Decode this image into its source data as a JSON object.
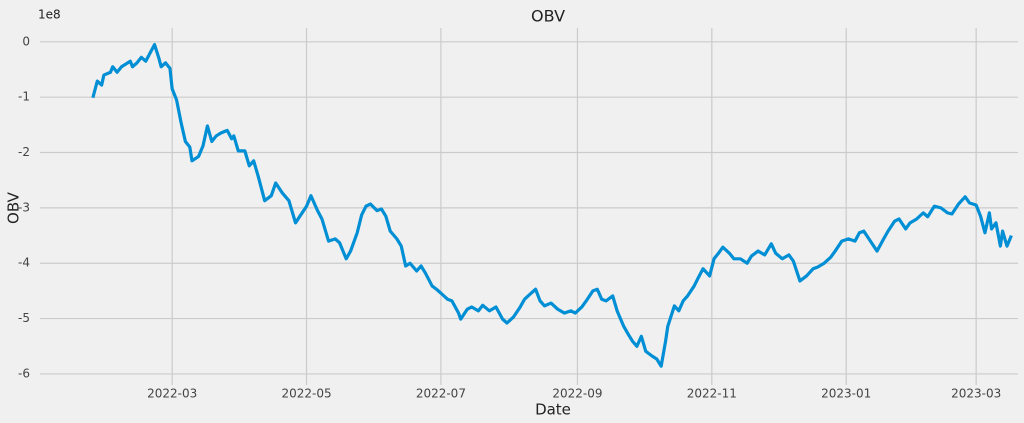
{
  "chart_data": {
    "type": "line",
    "title": "OBV",
    "x_label": "Date",
    "y_label": "OBV",
    "y_offset_label": "1e8",
    "color": "#008fd5",
    "grid": true,
    "xlim": [
      "2021-12-31",
      "2023-03-20"
    ],
    "xticks": [
      {
        "value": "2022-03-01",
        "label": "2022-03"
      },
      {
        "value": "2022-05-01",
        "label": "2022-05"
      },
      {
        "value": "2022-07-01",
        "label": "2022-07"
      },
      {
        "value": "2022-09-01",
        "label": "2022-09"
      },
      {
        "value": "2022-11-01",
        "label": "2022-11"
      },
      {
        "value": "2023-01-01",
        "label": "2023-01"
      },
      {
        "value": "2023-03-01",
        "label": "2023-03"
      }
    ],
    "ylim": [
      -6.2,
      0.25
    ],
    "yticks": [
      -6,
      -5,
      -4,
      -3,
      -2,
      -1,
      0
    ],
    "x": [
      "2022-01-24",
      "2022-01-26",
      "2022-01-28",
      "2022-01-29",
      "2022-02-01",
      "2022-02-02",
      "2022-02-04",
      "2022-02-06",
      "2022-02-08",
      "2022-02-10",
      "2022-02-11",
      "2022-02-13",
      "2022-02-15",
      "2022-02-17",
      "2022-02-19",
      "2022-02-21",
      "2022-02-23",
      "2022-02-24",
      "2022-02-26",
      "2022-02-28",
      "2022-03-01",
      "2022-03-03",
      "2022-03-05",
      "2022-03-07",
      "2022-03-09",
      "2022-03-10",
      "2022-03-13",
      "2022-03-15",
      "2022-03-17",
      "2022-03-19",
      "2022-03-21",
      "2022-03-23",
      "2022-03-26",
      "2022-03-28",
      "2022-03-29",
      "2022-03-31",
      "2022-04-03",
      "2022-04-05",
      "2022-04-07",
      "2022-04-09",
      "2022-04-12",
      "2022-04-15",
      "2022-04-17",
      "2022-04-20",
      "2022-04-23",
      "2022-04-26",
      "2022-04-28",
      "2022-05-01",
      "2022-05-03",
      "2022-05-06",
      "2022-05-08",
      "2022-05-11",
      "2022-05-14",
      "2022-05-16",
      "2022-05-19",
      "2022-05-21",
      "2022-05-24",
      "2022-05-26",
      "2022-05-28",
      "2022-05-30",
      "2022-06-02",
      "2022-06-04",
      "2022-06-06",
      "2022-06-08",
      "2022-06-11",
      "2022-06-13",
      "2022-06-15",
      "2022-06-17",
      "2022-06-20",
      "2022-06-22",
      "2022-06-24",
      "2022-06-27",
      "2022-06-29",
      "2022-07-01",
      "2022-07-04",
      "2022-07-06",
      "2022-07-09",
      "2022-07-10",
      "2022-07-13",
      "2022-07-15",
      "2022-07-18",
      "2022-07-20",
      "2022-07-23",
      "2022-07-26",
      "2022-07-29",
      "2022-07-31",
      "2022-08-03",
      "2022-08-06",
      "2022-08-08",
      "2022-08-11",
      "2022-08-13",
      "2022-08-15",
      "2022-08-17",
      "2022-08-20",
      "2022-08-23",
      "2022-08-26",
      "2022-08-29",
      "2022-08-31",
      "2022-09-03",
      "2022-09-05",
      "2022-09-08",
      "2022-09-10",
      "2022-09-12",
      "2022-09-14",
      "2022-09-17",
      "2022-09-19",
      "2022-09-22",
      "2022-09-24",
      "2022-09-26",
      "2022-09-28",
      "2022-09-30",
      "2022-10-02",
      "2022-10-05",
      "2022-10-07",
      "2022-10-09",
      "2022-10-11",
      "2022-10-12",
      "2022-10-15",
      "2022-10-17",
      "2022-10-19",
      "2022-10-21",
      "2022-10-24",
      "2022-10-26",
      "2022-10-28",
      "2022-10-31",
      "2022-11-02",
      "2022-11-04",
      "2022-11-06",
      "2022-11-09",
      "2022-11-11",
      "2022-11-14",
      "2022-11-17",
      "2022-11-19",
      "2022-11-22",
      "2022-11-25",
      "2022-11-28",
      "2022-11-30",
      "2022-12-03",
      "2022-12-06",
      "2022-12-08",
      "2022-12-11",
      "2022-12-14",
      "2022-12-17",
      "2022-12-19",
      "2022-12-22",
      "2022-12-25",
      "2022-12-27",
      "2022-12-30",
      "2023-01-02",
      "2023-01-05",
      "2023-01-07",
      "2023-01-09",
      "2023-01-12",
      "2023-01-15",
      "2023-01-18",
      "2023-01-20",
      "2023-01-23",
      "2023-01-25",
      "2023-01-28",
      "2023-01-30",
      "2023-02-02",
      "2023-02-05",
      "2023-02-07",
      "2023-02-10",
      "2023-02-13",
      "2023-02-16",
      "2023-02-18",
      "2023-02-21",
      "2023-02-24",
      "2023-02-26",
      "2023-03-01",
      "2023-03-03",
      "2023-03-05",
      "2023-03-07",
      "2023-03-08",
      "2023-03-10",
      "2023-03-12",
      "2023-03-13",
      "2023-03-15",
      "2023-03-17"
    ],
    "values": [
      -1.01,
      -0.71,
      -0.78,
      -0.6,
      -0.55,
      -0.45,
      -0.55,
      -0.45,
      -0.4,
      -0.35,
      -0.45,
      -0.38,
      -0.28,
      -0.35,
      -0.2,
      -0.05,
      -0.3,
      -0.45,
      -0.38,
      -0.48,
      -0.85,
      -1.05,
      -1.45,
      -1.8,
      -1.9,
      -2.15,
      -2.07,
      -1.88,
      -1.52,
      -1.8,
      -1.7,
      -1.65,
      -1.6,
      -1.75,
      -1.7,
      -1.97,
      -1.97,
      -2.24,
      -2.15,
      -2.42,
      -2.87,
      -2.78,
      -2.55,
      -2.73,
      -2.87,
      -3.27,
      -3.15,
      -2.97,
      -2.78,
      -3.05,
      -3.2,
      -3.6,
      -3.56,
      -3.63,
      -3.92,
      -3.78,
      -3.45,
      -3.13,
      -2.97,
      -2.93,
      -3.05,
      -3.02,
      -3.15,
      -3.42,
      -3.56,
      -3.69,
      -4.05,
      -4.0,
      -4.14,
      -4.05,
      -4.18,
      -4.41,
      -4.47,
      -4.54,
      -4.65,
      -4.68,
      -4.9,
      -5.01,
      -4.83,
      -4.79,
      -4.86,
      -4.76,
      -4.86,
      -4.79,
      -5.01,
      -5.08,
      -4.97,
      -4.79,
      -4.65,
      -4.54,
      -4.47,
      -4.68,
      -4.77,
      -4.72,
      -4.83,
      -4.9,
      -4.86,
      -4.9,
      -4.79,
      -4.68,
      -4.5,
      -4.47,
      -4.65,
      -4.68,
      -4.59,
      -4.86,
      -5.14,
      -5.28,
      -5.41,
      -5.5,
      -5.32,
      -5.59,
      -5.68,
      -5.73,
      -5.86,
      -5.41,
      -5.14,
      -4.77,
      -4.86,
      -4.68,
      -4.59,
      -4.41,
      -4.25,
      -4.1,
      -4.23,
      -3.92,
      -3.82,
      -3.71,
      -3.82,
      -3.92,
      -3.92,
      -4.0,
      -3.87,
      -3.78,
      -3.85,
      -3.65,
      -3.82,
      -3.92,
      -3.85,
      -3.96,
      -4.32,
      -4.23,
      -4.1,
      -4.07,
      -4.0,
      -3.89,
      -3.78,
      -3.6,
      -3.56,
      -3.6,
      -3.45,
      -3.42,
      -3.6,
      -3.78,
      -3.56,
      -3.42,
      -3.24,
      -3.2,
      -3.38,
      -3.27,
      -3.2,
      -3.09,
      -3.16,
      -2.97,
      -3.0,
      -3.09,
      -3.11,
      -2.93,
      -2.8,
      -2.91,
      -2.95,
      -3.15,
      -3.45,
      -3.09,
      -3.38,
      -3.27,
      -3.69,
      -3.42,
      -3.69,
      -3.5
    ]
  }
}
